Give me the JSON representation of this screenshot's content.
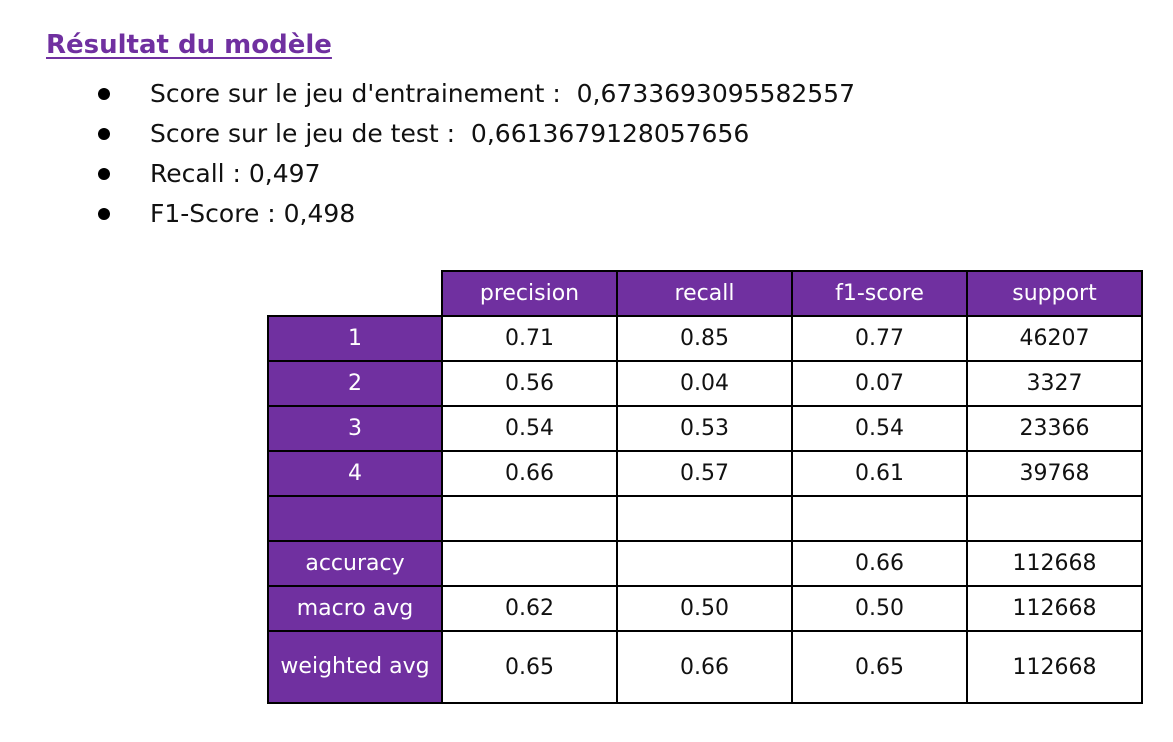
{
  "section_title": "Résultat du modèle",
  "bullets": [
    {
      "label": "Score sur le jeu d'entrainement : ",
      "value": " 0,6733693095582557"
    },
    {
      "label": "Score sur le jeu de test : ",
      "value": " 0,6613679128057656"
    },
    {
      "label": "Recall : ",
      "value": "0,497"
    },
    {
      "label": "F1-Score : ",
      "value": "0,498"
    }
  ],
  "table": {
    "headers": [
      "precision",
      "recall",
      "f1-score",
      "support"
    ],
    "rows": [
      {
        "label": "1",
        "values": [
          "0.71",
          "0.85",
          "0.77",
          "46207"
        ]
      },
      {
        "label": "2",
        "values": [
          "0.56",
          "0.04",
          "0.07",
          "3327"
        ]
      },
      {
        "label": "3",
        "values": [
          "0.54",
          "0.53",
          "0.54",
          "23366"
        ]
      },
      {
        "label": "4",
        "values": [
          "0.66",
          "0.57",
          "0.61",
          "39768"
        ]
      },
      {
        "label": "",
        "values": [
          "",
          "",
          "",
          ""
        ]
      },
      {
        "label": "accuracy",
        "values": [
          "",
          "",
          "0.66",
          "112668"
        ]
      },
      {
        "label": "macro avg",
        "values": [
          "0.62",
          "0.50",
          "0.50",
          "112668"
        ]
      },
      {
        "label": "weighted avg",
        "values": [
          "0.65",
          "0.66",
          "0.65",
          "112668"
        ]
      }
    ]
  },
  "colors": {
    "accent": "#7030a0",
    "header_text": "#ffffff",
    "border": "#000000"
  }
}
